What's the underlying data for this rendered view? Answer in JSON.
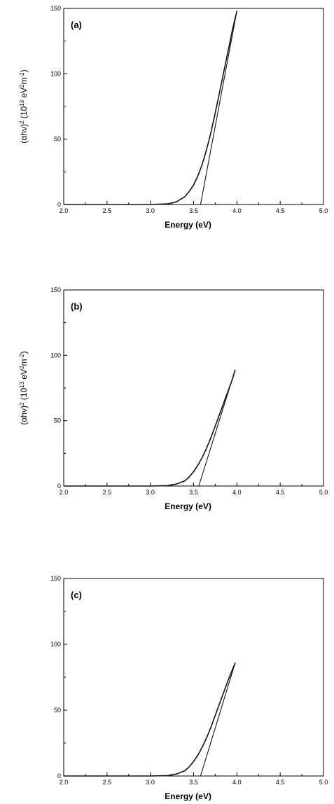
{
  "chart_data": [
    {
      "type": "line",
      "panel_label": "(a)",
      "xlabel": "Energy (eV)",
      "ylabel_parts": [
        "(αhν)",
        "2",
        " (10",
        "13",
        " eV",
        "2",
        "m",
        "-2",
        ")"
      ],
      "xlim": [
        2.0,
        5.0
      ],
      "ylim": [
        0,
        150
      ],
      "xticks": [
        "2.0",
        "2.5",
        "3.0",
        "3.5",
        "4.0",
        "4.5",
        "5.0"
      ],
      "yticks": [
        "0",
        "50",
        "100",
        "150"
      ],
      "grid": false,
      "series": [
        {
          "x": [
            2.0,
            2.5,
            3.0,
            3.2,
            3.3,
            3.4,
            3.45,
            3.5,
            3.55,
            3.6,
            3.65,
            3.7,
            3.75,
            3.8,
            3.85,
            3.9,
            3.95,
            4.0
          ],
          "y": [
            0,
            0,
            0,
            0.5,
            2,
            6,
            10,
            15,
            22,
            31,
            42,
            55,
            70,
            86,
            102,
            118,
            134,
            148
          ]
        },
        {
          "x": [
            3.58,
            4.0
          ],
          "y": [
            0,
            148
          ]
        }
      ]
    },
    {
      "type": "line",
      "panel_label": "(b)",
      "xlabel": "Energy (eV)",
      "ylabel_parts": [
        "(αhν)",
        "2",
        " (10",
        "13",
        " eV",
        "2",
        "m",
        "-2",
        ")"
      ],
      "xlim": [
        2.0,
        5.0
      ],
      "ylim": [
        0,
        150
      ],
      "xticks": [
        "2.0",
        "2.5",
        "3.0",
        "3.5",
        "4.0",
        "4.5",
        "5.0"
      ],
      "yticks": [
        "0",
        "50",
        "100",
        "150"
      ],
      "grid": false,
      "series": [
        {
          "x": [
            2.0,
            2.5,
            3.0,
            3.2,
            3.3,
            3.4,
            3.45,
            3.5,
            3.55,
            3.6,
            3.65,
            3.7,
            3.75,
            3.8,
            3.85,
            3.9,
            3.95,
            3.98
          ],
          "y": [
            0,
            0,
            0,
            0.3,
            1.5,
            4,
            7,
            11,
            16,
            22,
            29,
            37,
            46,
            55,
            64,
            73,
            82,
            89
          ]
        },
        {
          "x": [
            3.56,
            3.98
          ],
          "y": [
            0,
            89
          ]
        }
      ]
    },
    {
      "type": "line",
      "panel_label": "(c)",
      "xlabel": "Energy (eV)",
      "ylabel_parts": [],
      "xlim": [
        2.0,
        5.0
      ],
      "ylim": [
        0,
        150
      ],
      "xticks": [
        "2.0",
        "2.5",
        "3.0",
        "3.5",
        "4.0",
        "4.5",
        "5.0"
      ],
      "yticks": [
        "0",
        "50",
        "100",
        "150"
      ],
      "grid": false,
      "series": [
        {
          "x": [
            2.0,
            2.5,
            3.0,
            3.2,
            3.3,
            3.4,
            3.45,
            3.5,
            3.55,
            3.6,
            3.65,
            3.7,
            3.75,
            3.8,
            3.85,
            3.9,
            3.95,
            3.98
          ],
          "y": [
            0,
            0,
            0,
            0.3,
            1.5,
            4,
            7,
            11,
            16,
            22,
            29,
            37,
            46,
            55,
            64,
            73,
            81,
            86
          ]
        },
        {
          "x": [
            3.58,
            3.98
          ],
          "y": [
            0,
            86
          ]
        }
      ]
    }
  ]
}
